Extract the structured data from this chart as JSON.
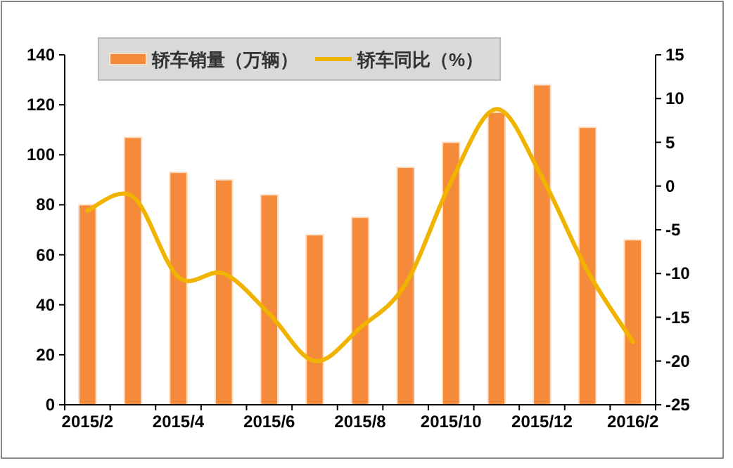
{
  "chart_data": {
    "type": "bar",
    "categories": [
      "2015/2",
      null,
      "2015/4",
      null,
      "2015/6",
      null,
      "2015/8",
      null,
      "2015/10",
      null,
      "2015/12",
      null,
      "2016/2"
    ],
    "series": [
      {
        "name": "轿车销量（万辆）",
        "color": "#f58a3a",
        "values": [
          80,
          107,
          93,
          90,
          84,
          68,
          75,
          95,
          105,
          117,
          128,
          111,
          66
        ]
      },
      {
        "name": "轿车同比（%）",
        "type": "line",
        "axis": "y2",
        "color": "#f0b400",
        "values": [
          -2.8,
          -1.2,
          -10.4,
          -10,
          -14.6,
          -20,
          -16.2,
          -11.2,
          0.5,
          8.8,
          1,
          -9.7,
          -17.8
        ]
      }
    ],
    "ylim": [
      0,
      140
    ],
    "yticks": [
      0,
      20,
      40,
      60,
      80,
      100,
      120,
      140
    ],
    "y2lim": [
      -25,
      15
    ],
    "y2ticks": [
      -25,
      -20,
      -15,
      -10,
      -5,
      0,
      5,
      10,
      15
    ],
    "legend": "top",
    "grid": false,
    "marker": "none",
    "line_style": "solid"
  }
}
